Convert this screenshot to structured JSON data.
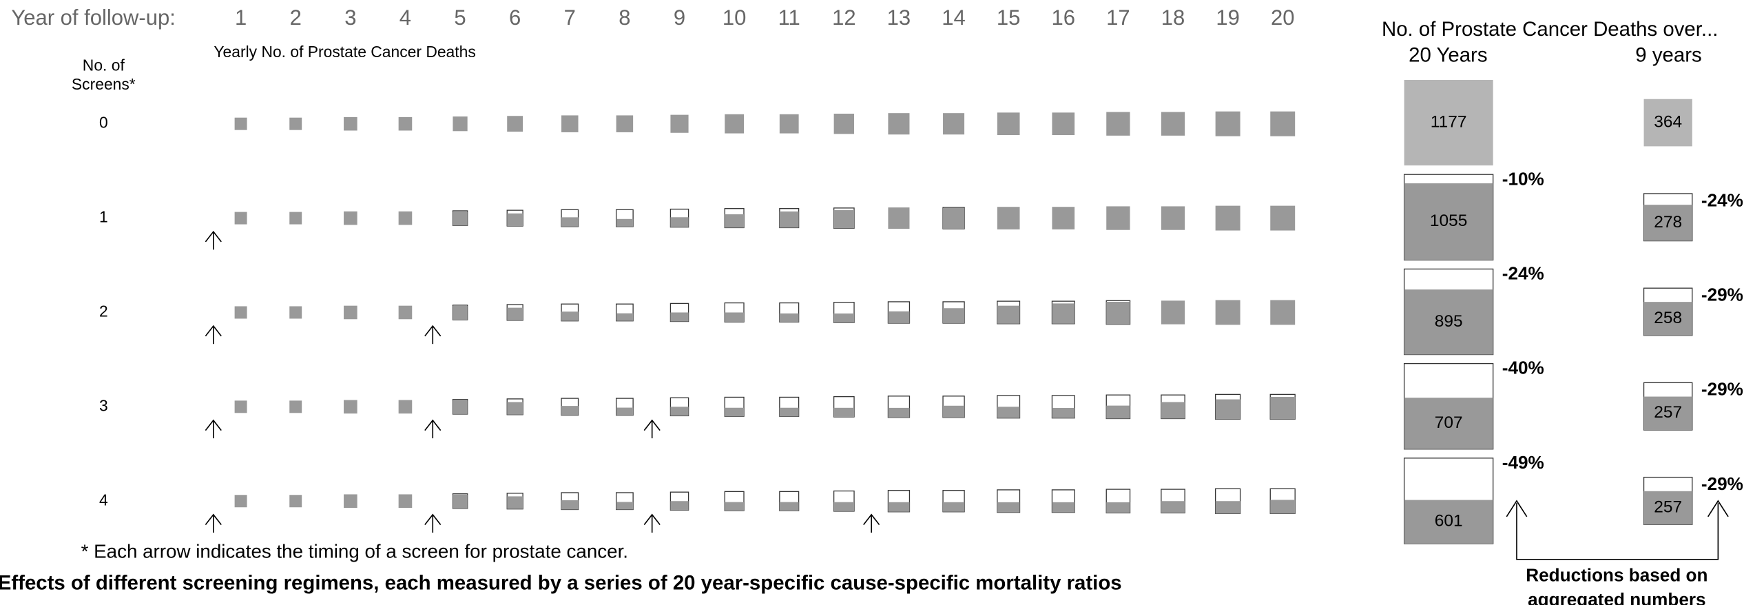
{
  "header": {
    "year_label": "Year of follow-up:",
    "years": [
      1,
      2,
      3,
      4,
      5,
      6,
      7,
      8,
      9,
      10,
      11,
      12,
      13,
      14,
      15,
      16,
      17,
      18,
      19,
      20
    ],
    "panel_title": "Yearly No. of Prostate Cancer Deaths",
    "screens_label_lines": [
      "No. of",
      "Screens*"
    ]
  },
  "grid": {
    "square_sizes": [
      11,
      11,
      12,
      12,
      13,
      14,
      15,
      15,
      16,
      17,
      17,
      18,
      19,
      19,
      20,
      20,
      21,
      21,
      22,
      22
    ],
    "rows": [
      {
        "screens": 0,
        "arrows": [],
        "filled_fraction": [
          1,
          1,
          1,
          1,
          1,
          1,
          1,
          1,
          1,
          1,
          1,
          1,
          1,
          1,
          1,
          1,
          1,
          1,
          1,
          1
        ]
      },
      {
        "screens": 1,
        "arrows": [
          1
        ],
        "filled_fraction": [
          1,
          1,
          1,
          1,
          0.95,
          0.8,
          0.55,
          0.45,
          0.55,
          0.7,
          0.85,
          0.9,
          1,
          0.97,
          1,
          1,
          1,
          1,
          1,
          1
        ]
      },
      {
        "screens": 2,
        "arrows": [
          1,
          5
        ],
        "filled_fraction": [
          1,
          1,
          1,
          1,
          0.95,
          0.8,
          0.55,
          0.45,
          0.5,
          0.5,
          0.45,
          0.45,
          0.55,
          0.7,
          0.8,
          0.9,
          0.95,
          1,
          1,
          1
        ]
      },
      {
        "screens": 3,
        "arrows": [
          1,
          5,
          9
        ],
        "filled_fraction": [
          1,
          1,
          1,
          1,
          0.95,
          0.8,
          0.55,
          0.45,
          0.5,
          0.45,
          0.45,
          0.45,
          0.45,
          0.55,
          0.5,
          0.45,
          0.55,
          0.7,
          0.8,
          0.9
        ]
      },
      {
        "screens": 4,
        "arrows": [
          1,
          5,
          9,
          13
        ],
        "filled_fraction": [
          1,
          1,
          1,
          1,
          0.95,
          0.8,
          0.55,
          0.45,
          0.5,
          0.45,
          0.45,
          0.45,
          0.45,
          0.45,
          0.45,
          0.45,
          0.45,
          0.5,
          0.5,
          0.55
        ]
      }
    ]
  },
  "footnote": "* Each arrow indicates the timing of a screen for prostate cancer.",
  "caption": "Effects of different screening regimens, each measured by a series of 20 year-specific cause-specific mortality ratios",
  "aggregate": {
    "title": "No. of Prostate Cancer Deaths over...",
    "columns": [
      {
        "label": "20 Years",
        "rows": [
          {
            "value": 1177
          },
          {
            "value": 1055,
            "change": "-10%"
          },
          {
            "value": 895,
            "change": "-24%"
          },
          {
            "value": 707,
            "change": "-40%"
          },
          {
            "value": 601,
            "change": "-49%"
          }
        ]
      },
      {
        "label": "9 years",
        "rows": [
          {
            "value": 364
          },
          {
            "value": 278,
            "change": "-24%"
          },
          {
            "value": 258,
            "change": "-29%"
          },
          {
            "value": 257,
            "change": "-29%"
          },
          {
            "value": 257,
            "change": "-29%"
          }
        ]
      }
    ]
  },
  "reduction_note": [
    "Reductions based on",
    "aggregated numbers"
  ]
}
